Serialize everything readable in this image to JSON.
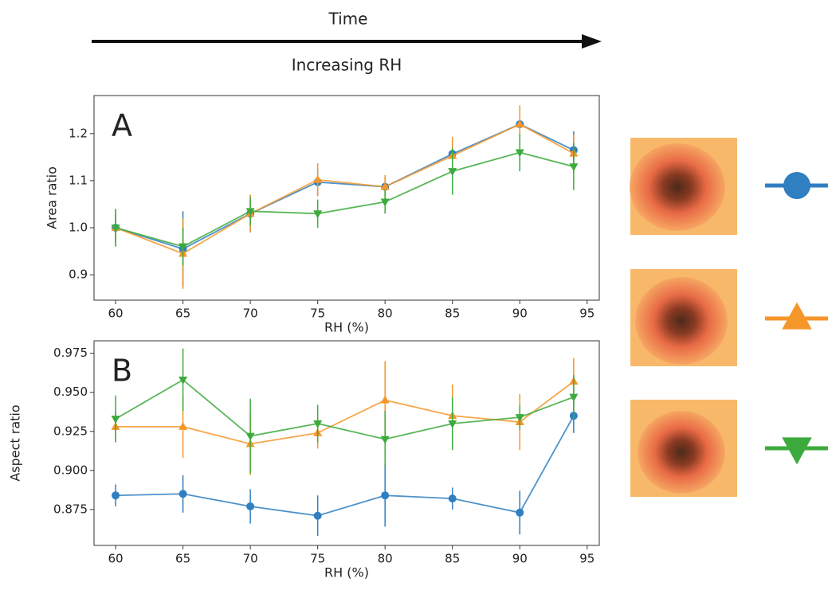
{
  "header": {
    "title": "Time",
    "subtitle": "Increasing RH"
  },
  "chart_data": [
    {
      "type": "line",
      "panel": "A",
      "ylabel": "Area ratio",
      "xlabel": "RH (%)",
      "x": [
        60,
        65,
        70,
        75,
        80,
        85,
        90,
        94
      ],
      "xlim": [
        58.4,
        95.9
      ],
      "xticks": [
        60,
        65,
        70,
        75,
        80,
        85,
        90,
        95
      ],
      "ylim": [
        0.846,
        1.281
      ],
      "yticks": [
        0.9,
        {
          "value": 1,
          "label": "1.0"
        },
        1.1,
        1.2
      ],
      "series": [
        {
          "color": "#2f7fc1",
          "marker": "o",
          "values": [
            1.0,
            0.955,
            1.03,
            1.097,
            1.087,
            1.157,
            1.22,
            1.165
          ],
          "errors": [
            0.03,
            0.08,
            0.04,
            0.03,
            0.02,
            0.03,
            0.04,
            0.04
          ]
        },
        {
          "color": "#f5962a",
          "marker": "^",
          "values": [
            1.0,
            0.945,
            1.03,
            1.102,
            1.087,
            1.153,
            1.22,
            1.158
          ],
          "errors": [
            0.04,
            0.075,
            0.04,
            0.035,
            0.025,
            0.04,
            0.04,
            0.04
          ]
        },
        {
          "color": "#3daa3d",
          "marker": "v",
          "values": [
            1.0,
            0.96,
            1.035,
            1.03,
            1.055,
            1.12,
            1.16,
            1.13
          ],
          "errors": [
            0.04,
            0.04,
            0.03,
            0.03,
            0.025,
            0.05,
            0.04,
            0.05
          ]
        }
      ]
    },
    {
      "type": "line",
      "panel": "B",
      "ylabel": "Aspect ratio",
      "xlabel": "RH (%)",
      "x": [
        60,
        65,
        70,
        75,
        80,
        85,
        90,
        94
      ],
      "xlim": [
        58.4,
        95.9
      ],
      "xticks": [
        60,
        65,
        70,
        75,
        80,
        85,
        90,
        95
      ],
      "ylim": [
        0.852,
        0.983
      ],
      "yticks": [
        0.875,
        {
          "value": 0.9,
          "label": "0.900"
        },
        0.925,
        {
          "value": 0.95,
          "label": "0.950"
        },
        0.975
      ],
      "series": [
        {
          "color": "#2f7fc1",
          "marker": "o",
          "values": [
            0.884,
            0.885,
            0.877,
            0.871,
            0.884,
            0.882,
            0.873,
            0.935
          ],
          "errors": [
            0.007,
            0.012,
            0.011,
            0.013,
            0.02,
            0.007,
            0.014,
            0.011
          ]
        },
        {
          "color": "#f5962a",
          "marker": "^",
          "values": [
            0.928,
            0.928,
            0.917,
            0.924,
            0.945,
            0.935,
            0.931,
            0.957
          ],
          "errors": [
            0.01,
            0.02,
            0.02,
            0.01,
            0.025,
            0.02,
            0.018,
            0.015
          ]
        },
        {
          "color": "#3daa3d",
          "marker": "v",
          "values": [
            0.933,
            0.958,
            0.922,
            0.93,
            0.92,
            0.93,
            0.934,
            0.947
          ],
          "errors": [
            0.015,
            0.02,
            0.024,
            0.012,
            0.018,
            0.017,
            0.008,
            0.014
          ]
        }
      ]
    }
  ]
}
